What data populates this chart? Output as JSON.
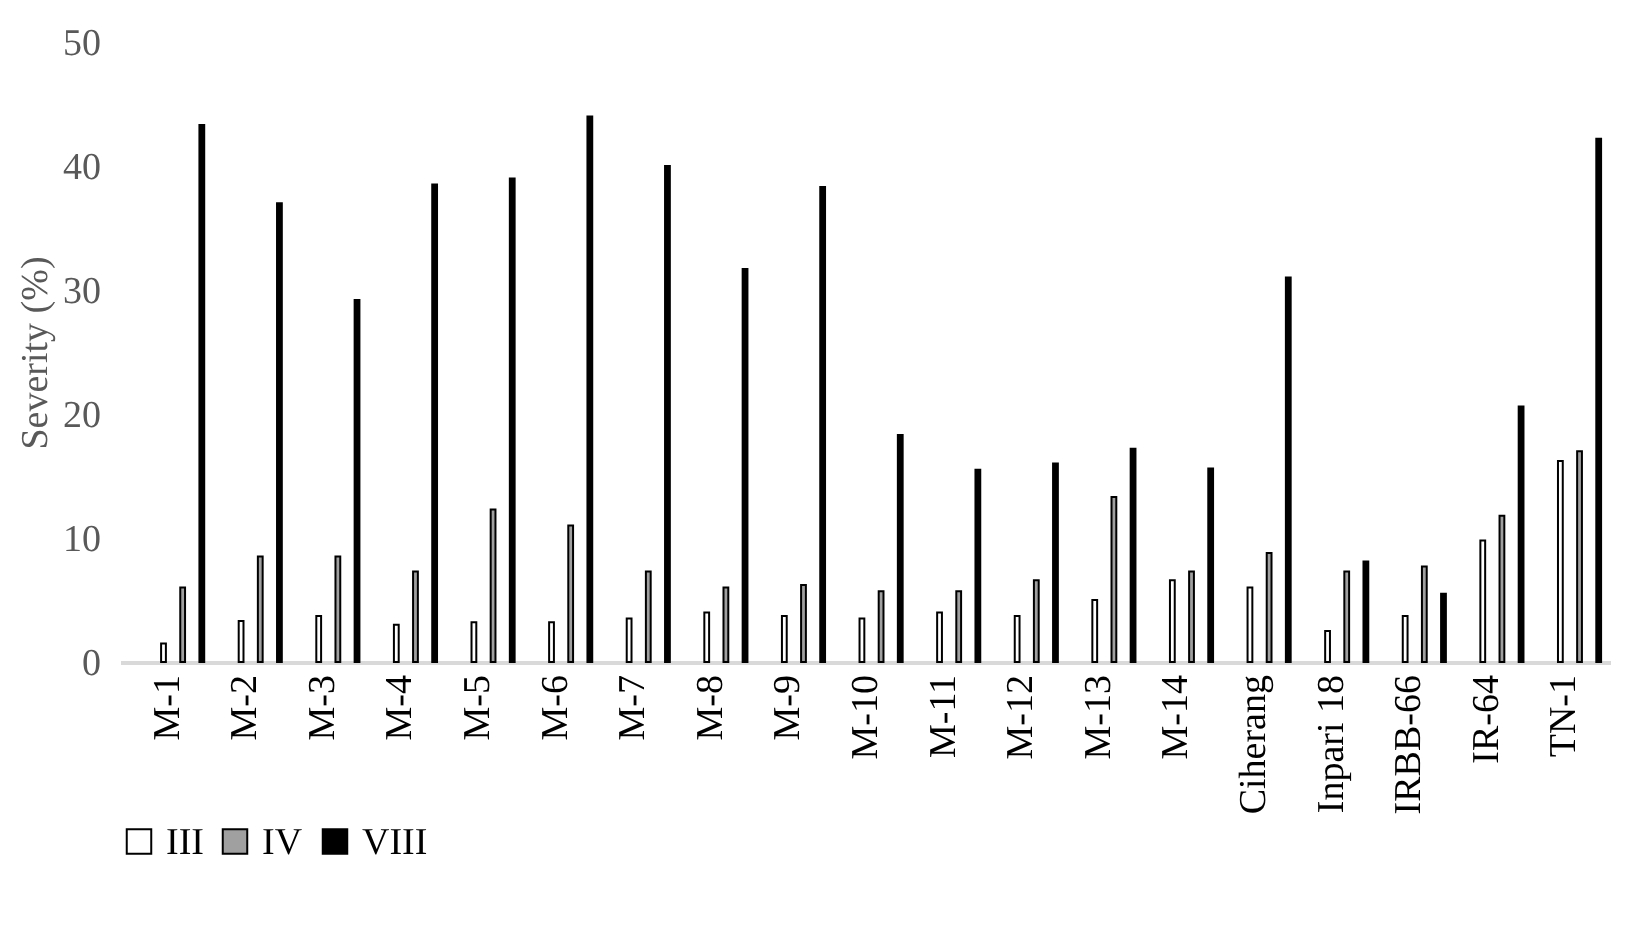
{
  "chart_data": {
    "type": "bar",
    "ylabel": "Severity (%)",
    "categories": [
      "M-1",
      "M-2",
      "M-3",
      "M-4",
      "M-5",
      "M-6",
      "M-7",
      "M-8",
      "M-9",
      "M-10",
      "M-11",
      "M-12",
      "M-13",
      "M-14",
      "Ciherang",
      "Inpari 18",
      "IRBB-66",
      "IR-64",
      "TN-1"
    ],
    "series": [
      {
        "name": "III",
        "color": "#ffffff",
        "values": [
          1.5,
          3.3,
          3.7,
          3,
          3.2,
          3.2,
          3.5,
          4,
          3.7,
          3.5,
          4,
          3.7,
          5,
          6.6,
          6,
          2.5,
          3.7,
          9.8,
          16.2
        ]
      },
      {
        "name": "IV",
        "color": "#a0a0a0",
        "values": [
          6,
          8.5,
          8.5,
          7.3,
          12.3,
          11,
          7.3,
          6,
          6.2,
          5.7,
          5.7,
          6.6,
          13.3,
          7.3,
          8.8,
          7.3,
          7.7,
          11.8,
          17
        ]
      },
      {
        "name": "VIII",
        "color": "#000000",
        "values": [
          43.3,
          37,
          29.2,
          38.5,
          39,
          44,
          40,
          31.7,
          38.3,
          18.3,
          15.5,
          16,
          17.2,
          15.6,
          31,
          8.1,
          5.5,
          20.6,
          42.2
        ]
      }
    ],
    "ylim": [
      0,
      50
    ],
    "yticks": [
      0,
      10,
      20,
      30,
      40,
      50
    ],
    "grid": false,
    "legend": "bottom"
  }
}
